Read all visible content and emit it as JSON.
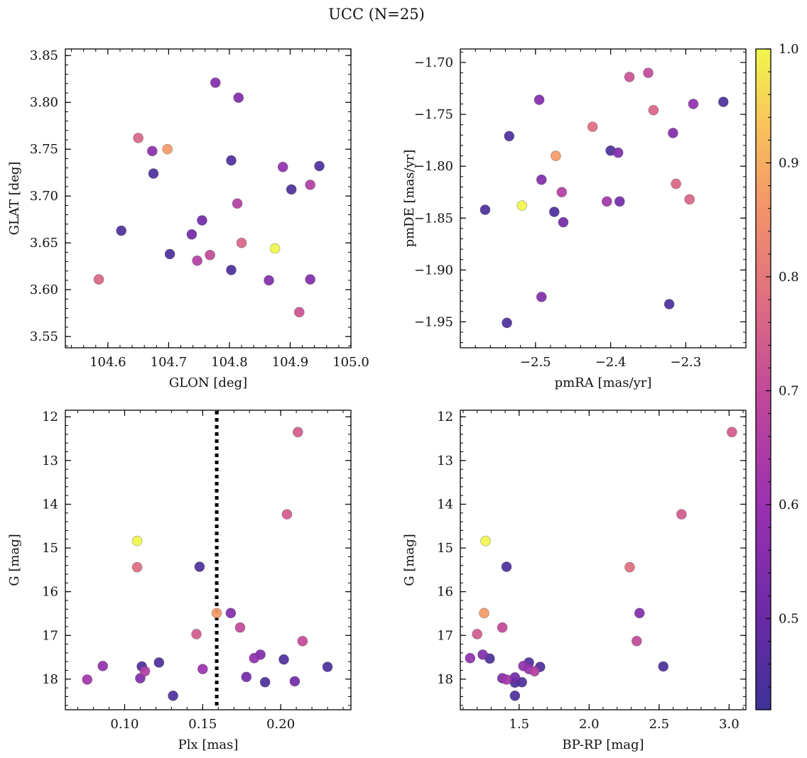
{
  "figure": {
    "title": "UCC (N=25)"
  },
  "colorbar": {
    "min": 0.42,
    "max": 1.0,
    "ticks": [
      0.5,
      0.6,
      0.7,
      0.8,
      0.9,
      1.0
    ],
    "tick_labels": [
      "0.5",
      "0.6",
      "0.7",
      "0.8",
      "0.9",
      "1.0"
    ],
    "colormap": "plasma"
  },
  "chart_data": [
    {
      "type": "scatter",
      "xlabel": "GLON [deg]",
      "ylabel": "GLAT [deg]",
      "xlim": [
        104.53,
        105.0
      ],
      "ylim": [
        3.538,
        3.857
      ],
      "inverted_y": false,
      "xticks": [
        104.6,
        104.7,
        104.8,
        104.9,
        105.0
      ],
      "xtick_labels": [
        "104.6",
        "104.7",
        "104.8",
        "104.9",
        "105.0"
      ],
      "yticks": [
        3.55,
        3.6,
        3.65,
        3.7,
        3.75,
        3.8,
        3.85
      ],
      "ytick_labels": [
        "3.55",
        "3.60",
        "3.65",
        "3.70",
        "3.75",
        "3.80",
        "3.85"
      ],
      "points": [
        {
          "x": 104.777,
          "y": 3.821,
          "c": 0.55
        },
        {
          "x": 104.815,
          "y": 3.805,
          "c": 0.55
        },
        {
          "x": 104.65,
          "y": 3.762,
          "c": 0.76
        },
        {
          "x": 104.698,
          "y": 3.75,
          "c": 0.87
        },
        {
          "x": 104.673,
          "y": 3.748,
          "c": 0.57
        },
        {
          "x": 104.675,
          "y": 3.724,
          "c": 0.45
        },
        {
          "x": 104.803,
          "y": 3.738,
          "c": 0.45
        },
        {
          "x": 104.888,
          "y": 3.731,
          "c": 0.58
        },
        {
          "x": 104.948,
          "y": 3.732,
          "c": 0.45
        },
        {
          "x": 104.902,
          "y": 3.707,
          "c": 0.45
        },
        {
          "x": 104.933,
          "y": 3.712,
          "c": 0.66
        },
        {
          "x": 104.813,
          "y": 3.692,
          "c": 0.66
        },
        {
          "x": 104.755,
          "y": 3.674,
          "c": 0.52
        },
        {
          "x": 104.622,
          "y": 3.663,
          "c": 0.45
        },
        {
          "x": 104.738,
          "y": 3.659,
          "c": 0.52
        },
        {
          "x": 104.82,
          "y": 3.65,
          "c": 0.76
        },
        {
          "x": 104.702,
          "y": 3.638,
          "c": 0.45
        },
        {
          "x": 104.768,
          "y": 3.637,
          "c": 0.7
        },
        {
          "x": 104.875,
          "y": 3.644,
          "c": 1.0
        },
        {
          "x": 104.747,
          "y": 3.631,
          "c": 0.66
        },
        {
          "x": 104.803,
          "y": 3.621,
          "c": 0.45
        },
        {
          "x": 104.865,
          "y": 3.61,
          "c": 0.55
        },
        {
          "x": 104.933,
          "y": 3.611,
          "c": 0.55
        },
        {
          "x": 104.585,
          "y": 3.611,
          "c": 0.76
        },
        {
          "x": 104.915,
          "y": 3.576,
          "c": 0.72
        }
      ]
    },
    {
      "type": "scatter",
      "xlabel": "pmRA [mas/yr]",
      "ylabel": "pmDE [mas/yr]",
      "xlim": [
        -2.6,
        -2.22
      ],
      "ylim": [
        -1.975,
        -1.687
      ],
      "inverted_y": false,
      "xticks": [
        -2.5,
        -2.4,
        -2.3
      ],
      "xtick_labels": [
        "−2.5",
        "−2.4",
        "−2.3"
      ],
      "yticks": [
        -1.95,
        -1.9,
        -1.85,
        -1.8,
        -1.75,
        -1.7
      ],
      "ytick_labels": [
        "−1.95",
        "−1.90",
        "−1.85",
        "−1.80",
        "−1.75",
        "−1.70"
      ],
      "points": [
        {
          "x": -2.35,
          "y": -1.71,
          "c": 0.7
        },
        {
          "x": -2.375,
          "y": -1.714,
          "c": 0.72
        },
        {
          "x": -2.495,
          "y": -1.736,
          "c": 0.55
        },
        {
          "x": -2.25,
          "y": -1.738,
          "c": 0.45
        },
        {
          "x": -2.29,
          "y": -1.74,
          "c": 0.58
        },
        {
          "x": -2.343,
          "y": -1.746,
          "c": 0.76
        },
        {
          "x": -2.424,
          "y": -1.762,
          "c": 0.78
        },
        {
          "x": -2.317,
          "y": -1.768,
          "c": 0.55
        },
        {
          "x": -2.535,
          "y": -1.771,
          "c": 0.45
        },
        {
          "x": -2.4,
          "y": -1.785,
          "c": 0.45
        },
        {
          "x": -2.39,
          "y": -1.787,
          "c": 0.55
        },
        {
          "x": -2.473,
          "y": -1.79,
          "c": 0.87
        },
        {
          "x": -2.492,
          "y": -1.813,
          "c": 0.55
        },
        {
          "x": -2.313,
          "y": -1.817,
          "c": 0.76
        },
        {
          "x": -2.465,
          "y": -1.825,
          "c": 0.66
        },
        {
          "x": -2.405,
          "y": -1.834,
          "c": 0.62
        },
        {
          "x": -2.388,
          "y": -1.834,
          "c": 0.52
        },
        {
          "x": -2.295,
          "y": -1.832,
          "c": 0.76
        },
        {
          "x": -2.518,
          "y": -1.838,
          "c": 1.0
        },
        {
          "x": -2.567,
          "y": -1.842,
          "c": 0.45
        },
        {
          "x": -2.475,
          "y": -1.844,
          "c": 0.45
        },
        {
          "x": -2.463,
          "y": -1.854,
          "c": 0.52
        },
        {
          "x": -2.492,
          "y": -1.926,
          "c": 0.55
        },
        {
          "x": -2.322,
          "y": -1.933,
          "c": 0.45
        },
        {
          "x": -2.538,
          "y": -1.951,
          "c": 0.45
        }
      ]
    },
    {
      "type": "scatter",
      "xlabel": "Plx [mas]",
      "ylabel": "G [mag]",
      "xlim": [
        0.062,
        0.245
      ],
      "ylim": [
        18.7,
        11.85
      ],
      "inverted_y": true,
      "vline": 0.159,
      "xticks": [
        0.1,
        0.15,
        0.2
      ],
      "xtick_labels": [
        "0.10",
        "0.15",
        "0.20"
      ],
      "yticks": [
        12,
        13,
        14,
        15,
        16,
        17,
        18
      ],
      "ytick_labels": [
        "12",
        "13",
        "14",
        "15",
        "16",
        "17",
        "18"
      ],
      "points": [
        {
          "x": 0.211,
          "y": 12.35,
          "c": 0.74
        },
        {
          "x": 0.204,
          "y": 14.23,
          "c": 0.74
        },
        {
          "x": 0.108,
          "y": 14.84,
          "c": 1.0
        },
        {
          "x": 0.108,
          "y": 15.44,
          "c": 0.78
        },
        {
          "x": 0.148,
          "y": 15.43,
          "c": 0.45
        },
        {
          "x": 0.159,
          "y": 16.49,
          "c": 0.87
        },
        {
          "x": 0.168,
          "y": 16.49,
          "c": 0.55
        },
        {
          "x": 0.174,
          "y": 16.82,
          "c": 0.7
        },
        {
          "x": 0.146,
          "y": 16.97,
          "c": 0.74
        },
        {
          "x": 0.214,
          "y": 17.13,
          "c": 0.7
        },
        {
          "x": 0.187,
          "y": 17.44,
          "c": 0.55
        },
        {
          "x": 0.183,
          "y": 17.52,
          "c": 0.58
        },
        {
          "x": 0.202,
          "y": 17.55,
          "c": 0.45
        },
        {
          "x": 0.122,
          "y": 17.62,
          "c": 0.45
        },
        {
          "x": 0.086,
          "y": 17.7,
          "c": 0.58
        },
        {
          "x": 0.111,
          "y": 17.71,
          "c": 0.45
        },
        {
          "x": 0.23,
          "y": 17.72,
          "c": 0.45
        },
        {
          "x": 0.15,
          "y": 17.77,
          "c": 0.6
        },
        {
          "x": 0.113,
          "y": 17.82,
          "c": 0.66
        },
        {
          "x": 0.178,
          "y": 17.95,
          "c": 0.52
        },
        {
          "x": 0.11,
          "y": 17.98,
          "c": 0.55
        },
        {
          "x": 0.076,
          "y": 18.01,
          "c": 0.62
        },
        {
          "x": 0.209,
          "y": 18.05,
          "c": 0.52
        },
        {
          "x": 0.19,
          "y": 18.07,
          "c": 0.45
        },
        {
          "x": 0.131,
          "y": 18.38,
          "c": 0.45
        }
      ]
    },
    {
      "type": "scatter",
      "xlabel": "BP-RP [mag]",
      "ylabel": "G [mag]",
      "xlim": [
        1.08,
        3.12
      ],
      "ylim": [
        18.7,
        11.85
      ],
      "inverted_y": true,
      "xticks": [
        1.5,
        2.0,
        2.5,
        3.0
      ],
      "xtick_labels": [
        "1.5",
        "2.0",
        "2.5",
        "3.0"
      ],
      "yticks": [
        12,
        13,
        14,
        15,
        16,
        17,
        18
      ],
      "ytick_labels": [
        "12",
        "13",
        "14",
        "15",
        "16",
        "17",
        "18"
      ],
      "points": [
        {
          "x": 3.02,
          "y": 12.35,
          "c": 0.74
        },
        {
          "x": 2.66,
          "y": 14.23,
          "c": 0.74
        },
        {
          "x": 1.26,
          "y": 14.84,
          "c": 1.0
        },
        {
          "x": 1.41,
          "y": 15.43,
          "c": 0.45
        },
        {
          "x": 2.29,
          "y": 15.44,
          "c": 0.78
        },
        {
          "x": 1.25,
          "y": 16.49,
          "c": 0.87
        },
        {
          "x": 2.36,
          "y": 16.49,
          "c": 0.55
        },
        {
          "x": 1.38,
          "y": 16.82,
          "c": 0.7
        },
        {
          "x": 1.2,
          "y": 16.97,
          "c": 0.74
        },
        {
          "x": 2.34,
          "y": 17.13,
          "c": 0.7
        },
        {
          "x": 1.24,
          "y": 17.44,
          "c": 0.55
        },
        {
          "x": 1.29,
          "y": 17.53,
          "c": 0.45
        },
        {
          "x": 1.15,
          "y": 17.52,
          "c": 0.58
        },
        {
          "x": 1.57,
          "y": 17.62,
          "c": 0.45
        },
        {
          "x": 1.53,
          "y": 17.7,
          "c": 0.58
        },
        {
          "x": 1.65,
          "y": 17.72,
          "c": 0.45
        },
        {
          "x": 2.53,
          "y": 17.71,
          "c": 0.45
        },
        {
          "x": 1.57,
          "y": 17.77,
          "c": 0.6
        },
        {
          "x": 1.61,
          "y": 17.82,
          "c": 0.66
        },
        {
          "x": 1.38,
          "y": 17.98,
          "c": 0.55
        },
        {
          "x": 1.41,
          "y": 18.01,
          "c": 0.62
        },
        {
          "x": 1.47,
          "y": 17.96,
          "c": 0.52
        },
        {
          "x": 1.52,
          "y": 18.07,
          "c": 0.45
        },
        {
          "x": 1.47,
          "y": 18.08,
          "c": 0.45
        },
        {
          "x": 1.47,
          "y": 18.38,
          "c": 0.45
        }
      ]
    }
  ]
}
